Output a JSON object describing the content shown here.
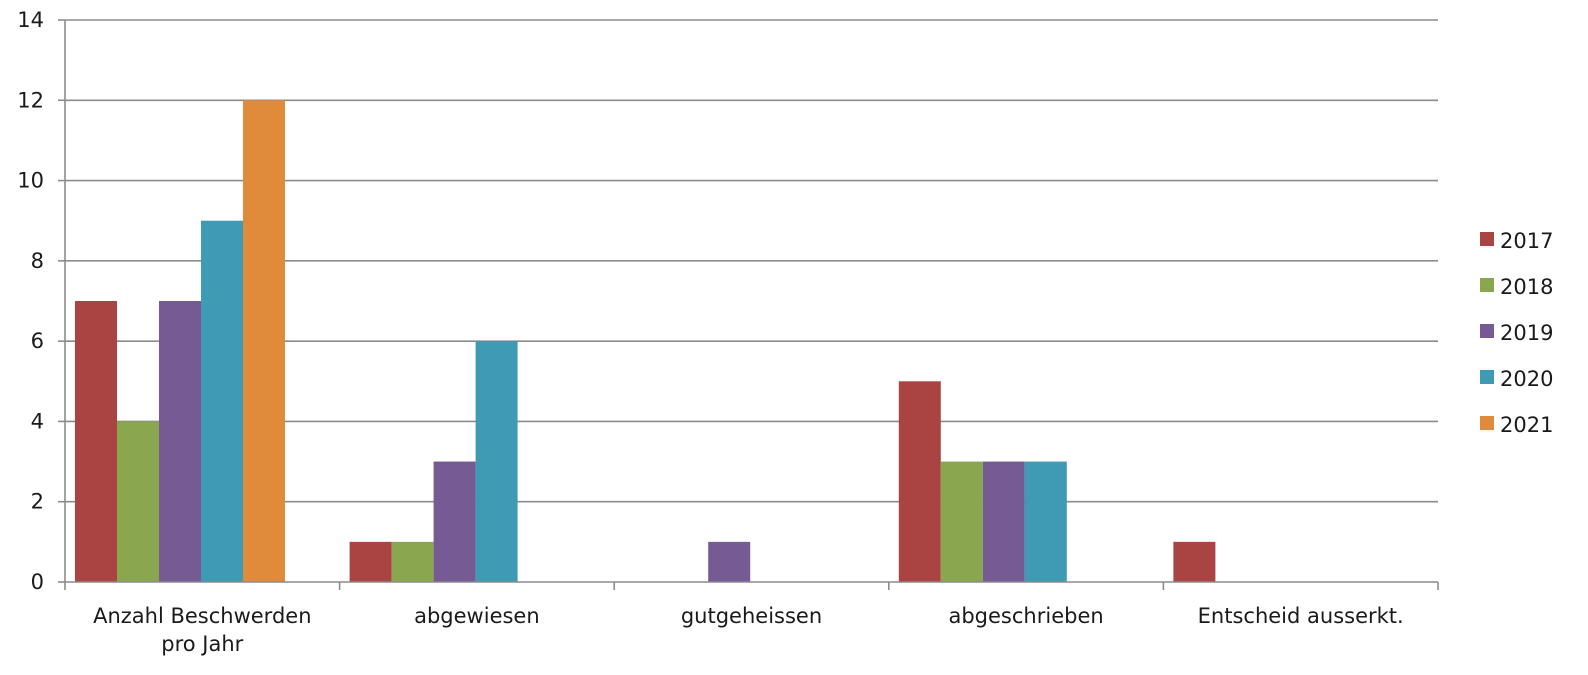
{
  "chart_data": {
    "type": "bar",
    "title": "",
    "xlabel": "",
    "ylabel": "",
    "ylim": [
      0,
      14
    ],
    "yticks": [
      0,
      2,
      4,
      6,
      8,
      10,
      12,
      14
    ],
    "grid": true,
    "legend_position": "right",
    "categories": [
      [
        "Anzahl Beschwerden",
        "pro Jahr"
      ],
      [
        "abgewiesen"
      ],
      [
        "gutgeheissen"
      ],
      [
        "abgeschrieben"
      ],
      [
        "Entscheid ausserkt."
      ]
    ],
    "series": [
      {
        "name": "2017",
        "color": "#a94442",
        "values": [
          7,
          1,
          0,
          5,
          1
        ]
      },
      {
        "name": "2018",
        "color": "#8aa64f",
        "values": [
          4,
          1,
          0,
          3,
          0
        ]
      },
      {
        "name": "2019",
        "color": "#765a94",
        "values": [
          7,
          3,
          1,
          3,
          0
        ]
      },
      {
        "name": "2020",
        "color": "#3e9bb3",
        "values": [
          9,
          6,
          0,
          3,
          0
        ]
      },
      {
        "name": "2021",
        "color": "#e08a3c",
        "values": [
          12,
          0,
          0,
          0,
          0
        ]
      }
    ]
  }
}
